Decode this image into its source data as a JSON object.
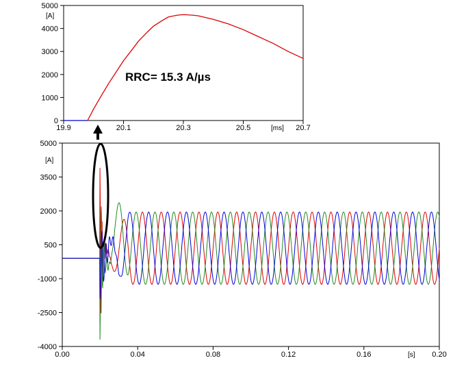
{
  "chart_data": [
    {
      "id": "zoom",
      "type": "line",
      "title": "",
      "xlabel": "",
      "ylabel": "",
      "x_unit_label": "[ms]",
      "y_unit_label": "[A]",
      "xlim": [
        19.9,
        20.7
      ],
      "ylim": [
        0,
        5000
      ],
      "x_ticks": [
        19.9,
        20.1,
        20.3,
        20.5,
        20.7
      ],
      "x_tick_labels": [
        "19.9",
        "20.1",
        "20.3",
        "20.5",
        "20.7"
      ],
      "y_ticks": [
        0,
        1000,
        2000,
        3000,
        4000,
        5000
      ],
      "y_tick_labels": [
        "0",
        "1000",
        "2000",
        "3000",
        "4000",
        "5000"
      ],
      "grid": false,
      "legend": "none",
      "annotation": "RRC= 15.3 A/µs",
      "series": [
        {
          "color": "#0000cc",
          "x": [
            19.9,
            19.98
          ],
          "y": [
            0,
            0
          ]
        },
        {
          "color": "#dd0000",
          "x": [
            19.98,
            20.0,
            20.02,
            20.05,
            20.08,
            20.1,
            20.13,
            20.15,
            20.18,
            20.2,
            20.23,
            20.25,
            20.28,
            20.3,
            20.33,
            20.35,
            20.4,
            20.45,
            20.5,
            20.55,
            20.6,
            20.65,
            20.7
          ],
          "y": [
            0,
            500,
            950,
            1600,
            2200,
            2600,
            3100,
            3450,
            3850,
            4100,
            4350,
            4500,
            4580,
            4600,
            4580,
            4550,
            4400,
            4200,
            3950,
            3650,
            3350,
            3000,
            2700
          ]
        }
      ]
    },
    {
      "id": "main",
      "type": "line",
      "title": "",
      "xlabel": "",
      "ylabel": "",
      "x_unit_label": "[s]",
      "y_unit_label": "[A]",
      "xlim": [
        0,
        0.2
      ],
      "ylim": [
        -4000,
        5000
      ],
      "x_ticks": [
        0,
        0.04,
        0.08,
        0.12,
        0.16,
        0.2
      ],
      "x_tick_labels": [
        "0.00",
        "0.04",
        "0.08",
        "0.12",
        "0.16",
        "0.20"
      ],
      "y_ticks": [
        -4000,
        -2500,
        -1000,
        500,
        2000,
        3500,
        5000
      ],
      "y_tick_labels": [
        "-4000",
        "-2500",
        "-1000",
        "500",
        "2000",
        "3500",
        "5000"
      ],
      "grid": false,
      "legend": "none",
      "phases": [
        {
          "color": "#dd0000",
          "steady_amplitude": 1600,
          "steady_offset": 350,
          "frequency_hz": 100,
          "phase_deg": 0
        },
        {
          "color": "#228822",
          "steady_amplitude": 1600,
          "steady_offset": 350,
          "frequency_hz": 100,
          "phase_deg": 120
        },
        {
          "color": "#0000dd",
          "steady_amplitude": 1600,
          "steady_offset": 350,
          "frequency_hz": 100,
          "phase_deg": 240
        }
      ],
      "prefault": {
        "x_end": 0.02,
        "value": -100
      },
      "transient": {
        "start": 0.02,
        "end": 0.035,
        "red_peak": 4000,
        "green_trough": -3600,
        "green_overshoot": 2300
      }
    }
  ]
}
